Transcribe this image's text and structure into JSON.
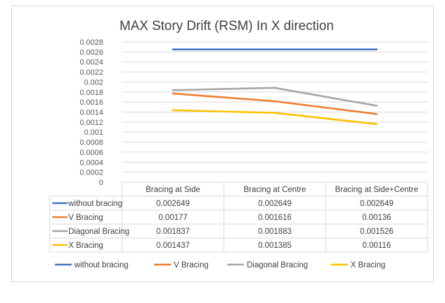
{
  "chart_data": {
    "type": "line",
    "title": "MAX Story Drift (RSM) In X direction",
    "xlabel": "",
    "ylabel": "",
    "categories": [
      "Bracing at Side",
      "Bracing at Centre",
      "Bracing at Side+Centre"
    ],
    "ylim": [
      0,
      0.0028
    ],
    "yticks": [
      "0.0028",
      "0.0026",
      "0.0024",
      "0.0022",
      "0.002",
      "0.0018",
      "0.0016",
      "0.0014",
      "0.0012",
      "0.001",
      "0.0008",
      "0.0006",
      "0.0004",
      "0.0002",
      "0"
    ],
    "grid": true,
    "legend_position": "bottom",
    "series": [
      {
        "name": "without bracing",
        "color": "#4472c4",
        "values": [
          0.002649,
          0.002649,
          0.002649
        ],
        "labels": [
          "0.002649",
          "0.002649",
          "0.002649"
        ]
      },
      {
        "name": "V Bracing",
        "color": "#ed7d31",
        "values": [
          0.00177,
          0.001616,
          0.00136
        ],
        "labels": [
          "0.00177",
          "0.001616",
          "0.00136"
        ]
      },
      {
        "name": "Diagonal Bracing",
        "color": "#a5a5a5",
        "values": [
          0.001837,
          0.001883,
          0.001526
        ],
        "labels": [
          "0.001837",
          "0.001883",
          "0.001526"
        ]
      },
      {
        "name": "X Bracing",
        "color": "#ffc000",
        "values": [
          0.001437,
          0.001385,
          0.00116
        ],
        "labels": [
          "0.001437",
          "0.001385",
          "0.00116"
        ]
      }
    ]
  }
}
